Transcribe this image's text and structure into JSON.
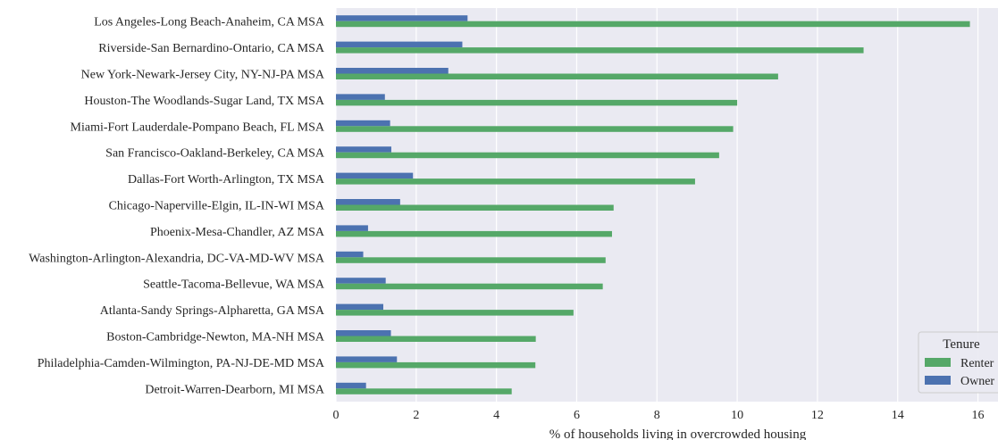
{
  "chart_data": {
    "type": "bar",
    "orientation": "horizontal",
    "categories": [
      "Los Angeles-Long Beach-Anaheim, CA MSA",
      "Riverside-San Bernardino-Ontario, CA MSA",
      "New York-Newark-Jersey City, NY-NJ-PA MSA",
      "Houston-The Woodlands-Sugar Land, TX MSA",
      "Miami-Fort Lauderdale-Pompano Beach, FL MSA",
      "San Francisco-Oakland-Berkeley, CA MSA",
      "Dallas-Fort Worth-Arlington, TX MSA",
      "Chicago-Naperville-Elgin, IL-IN-WI MSA",
      "Phoenix-Mesa-Chandler, AZ MSA",
      "Washington-Arlington-Alexandria, DC-VA-MD-WV MSA",
      "Seattle-Tacoma-Bellevue, WA MSA",
      "Atlanta-Sandy Springs-Alpharetta, GA MSA",
      "Boston-Cambridge-Newton, MA-NH MSA",
      "Philadelphia-Camden-Wilmington, PA-NJ-DE-MD MSA",
      "Detroit-Warren-Dearborn, MI MSA"
    ],
    "series": [
      {
        "name": "Renter",
        "color": "#55a868",
        "values": [
          15.8,
          13.15,
          11.02,
          10.0,
          9.9,
          9.55,
          8.95,
          6.92,
          6.88,
          6.72,
          6.65,
          5.92,
          4.98,
          4.97,
          4.38
        ]
      },
      {
        "name": "Owner",
        "color": "#4c72b0",
        "values": [
          3.28,
          3.15,
          2.8,
          1.22,
          1.35,
          1.38,
          1.92,
          1.6,
          0.8,
          0.68,
          1.24,
          1.18,
          1.37,
          1.52,
          0.75
        ]
      }
    ],
    "xlabel": "% of households living in overcrowded housing",
    "ylabel": "",
    "xlim": [
      0,
      16.5
    ],
    "xticks": [
      "0",
      "2",
      "4",
      "6",
      "8",
      "10",
      "12",
      "14",
      "16"
    ],
    "grid": true,
    "legend": {
      "title": "Tenure",
      "position": "lower-right"
    },
    "background": "#eaeaf2"
  }
}
